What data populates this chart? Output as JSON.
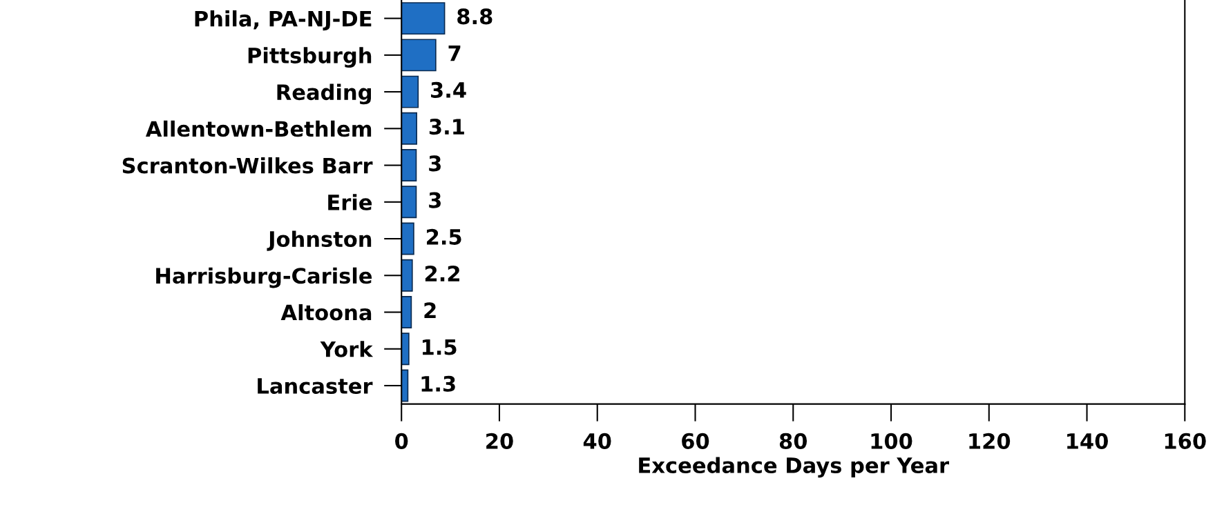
{
  "chart_data": {
    "type": "bar",
    "orientation": "horizontal",
    "categories": [
      "Phila, PA-NJ-DE",
      "Pittsburgh",
      "Reading",
      "Allentown-Bethlem",
      "Scranton-Wilkes Barr",
      "Erie",
      "Johnston",
      "Harrisburg-Carisle",
      "Altoona",
      "York",
      "Lancaster"
    ],
    "values": [
      8.8,
      7,
      3.4,
      3.1,
      3,
      3,
      2.5,
      2.2,
      2,
      1.5,
      1.3
    ],
    "color": "#1f6fc4",
    "xlabel": "Exceedance Days per Year",
    "xlim": [
      0,
      160
    ],
    "xticks": [
      0,
      20,
      40,
      60,
      80,
      100,
      120,
      140,
      160
    ],
    "data_labels": true,
    "grid": false,
    "legend": false
  }
}
